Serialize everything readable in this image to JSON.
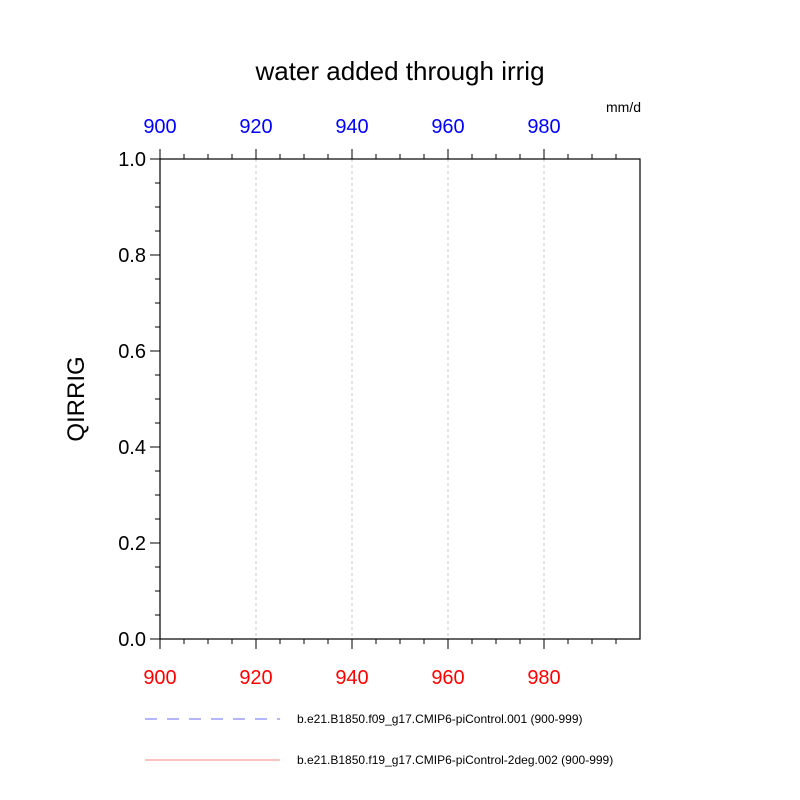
{
  "chart_data": {
    "type": "line",
    "title": "water added through irrig",
    "units": "mm/d",
    "ylabel": "QIRRIG",
    "xlabel": "",
    "xlim": [
      900,
      999
    ],
    "ylim": [
      0.0,
      1.0
    ],
    "x_ticks": [
      900,
      920,
      940,
      960,
      980
    ],
    "y_ticks": [
      "0.0",
      "0.2",
      "0.4",
      "0.6",
      "0.8",
      "1.0"
    ],
    "top_axis_color": "#0000ff",
    "bottom_axis_color": "#ff0000",
    "vertical_grid": true,
    "series": [
      {
        "name": "b.e21.B1850.f09_g17.CMIP6-piControl.001 (900-999)",
        "color": "#6a6aff",
        "dash": "dashed",
        "values": []
      },
      {
        "name": "b.e21.B1850.f19_g17.CMIP6-piControl-2deg.002 (900-999)",
        "color": "#ff8080",
        "dash": "solid",
        "values": []
      }
    ],
    "legend_position": "bottom"
  }
}
